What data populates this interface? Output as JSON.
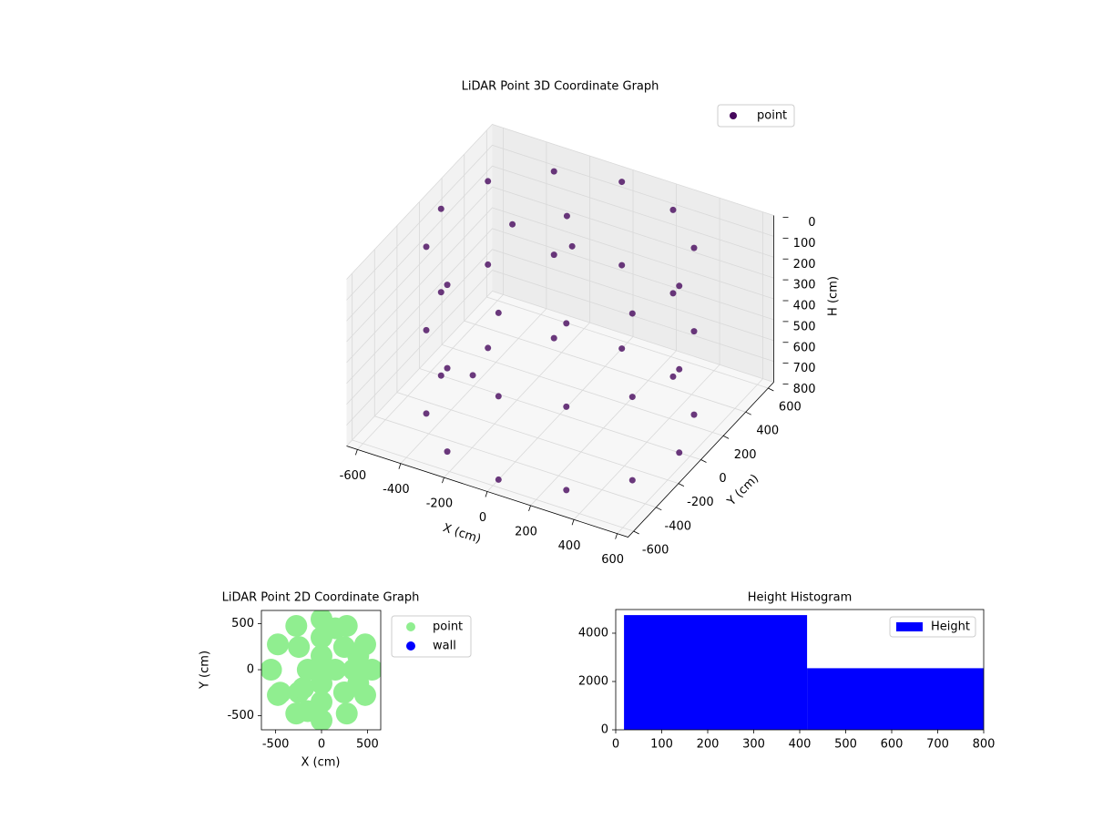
{
  "chart_data": [
    {
      "type": "scatter3d",
      "title": "LiDAR Point 3D Coordinate Graph",
      "xlabel": "X (cm)",
      "ylabel": "Y (cm)",
      "zlabel": "H (cm)",
      "xlim": [
        -650,
        650
      ],
      "ylim": [
        -650,
        650
      ],
      "zlim": [
        0,
        800
      ],
      "z_inverted": true,
      "xticks": [
        -600,
        -400,
        -200,
        0,
        200,
        400,
        600
      ],
      "yticks": [
        -600,
        -400,
        -200,
        0,
        200,
        400,
        600
      ],
      "zticks": [
        0,
        100,
        200,
        300,
        400,
        500,
        600,
        700,
        800
      ],
      "grid": true,
      "legend": "upper right",
      "series": [
        {
          "name": "point",
          "color": "#46085c",
          "x": [
            550,
            476,
            275,
            0,
            -275,
            -476,
            -550,
            -476,
            -275,
            0,
            275,
            476,
            550,
            476,
            275,
            0,
            -275,
            -476,
            -550,
            -476,
            -275,
            0,
            275,
            476,
            550,
            476,
            275,
            0,
            -275,
            -476,
            -550,
            -476,
            -275,
            0,
            275,
            476,
            -350,
            -300,
            -150,
            -100
          ],
          "y": [
            0,
            275,
            476,
            550,
            476,
            275,
            0,
            -275,
            -476,
            -550,
            -476,
            -275,
            0,
            275,
            476,
            550,
            476,
            275,
            0,
            -275,
            -476,
            -550,
            -476,
            -275,
            0,
            275,
            476,
            550,
            476,
            275,
            0,
            -275,
            -476,
            -550,
            -476,
            -275,
            250,
            -200,
            350,
            300
          ],
          "z": [
            0,
            0,
            0,
            0,
            0,
            0,
            0,
            0,
            0,
            0,
            0,
            0,
            400,
            400,
            400,
            400,
            400,
            400,
            400,
            400,
            400,
            400,
            400,
            400,
            800,
            800,
            800,
            800,
            800,
            800,
            800,
            800,
            800,
            800,
            800,
            800,
            150,
            600,
            100,
            200
          ]
        }
      ]
    },
    {
      "type": "scatter",
      "title": "LiDAR Point 2D Coordinate Graph",
      "xlabel": "X (cm)",
      "ylabel": "Y (cm)",
      "xlim": [
        -655,
        645
      ],
      "ylim": [
        -653,
        644
      ],
      "xticks": [
        -500,
        0,
        500
      ],
      "yticks": [
        -500,
        0,
        500
      ],
      "legend": "outside right",
      "series": [
        {
          "name": "point",
          "color": "#90ee90",
          "x": [
            550,
            476,
            275,
            0,
            -275,
            -476,
            -550,
            -476,
            -275,
            0,
            275,
            476,
            350,
            247,
            0,
            -247,
            -247,
            0,
            247,
            150,
            0,
            -150,
            0,
            0,
            400,
            400,
            150,
            -150,
            -200,
            -450
          ],
          "y": [
            0,
            275,
            476,
            550,
            476,
            275,
            0,
            -275,
            -476,
            -550,
            -476,
            -275,
            0,
            247,
            350,
            247,
            -247,
            -350,
            -247,
            0,
            150,
            0,
            -150,
            0,
            150,
            -150,
            450,
            -450,
            -200,
            -250
          ]
        },
        {
          "name": "wall",
          "color": "#0000ff",
          "x": [],
          "y": []
        }
      ]
    },
    {
      "type": "histogram",
      "title": "Height Histogram",
      "xlim": [
        0,
        800
      ],
      "ylim": [
        0,
        4980
      ],
      "xticks": [
        0,
        100,
        200,
        300,
        400,
        500,
        600,
        700,
        800
      ],
      "yticks": [
        0,
        2000,
        4000
      ],
      "bins": [
        18,
        416,
        814
      ],
      "legend": "upper right",
      "series": [
        {
          "name": "Height",
          "color": "#0000ff",
          "values": [
            4750,
            2550
          ]
        }
      ]
    }
  ]
}
